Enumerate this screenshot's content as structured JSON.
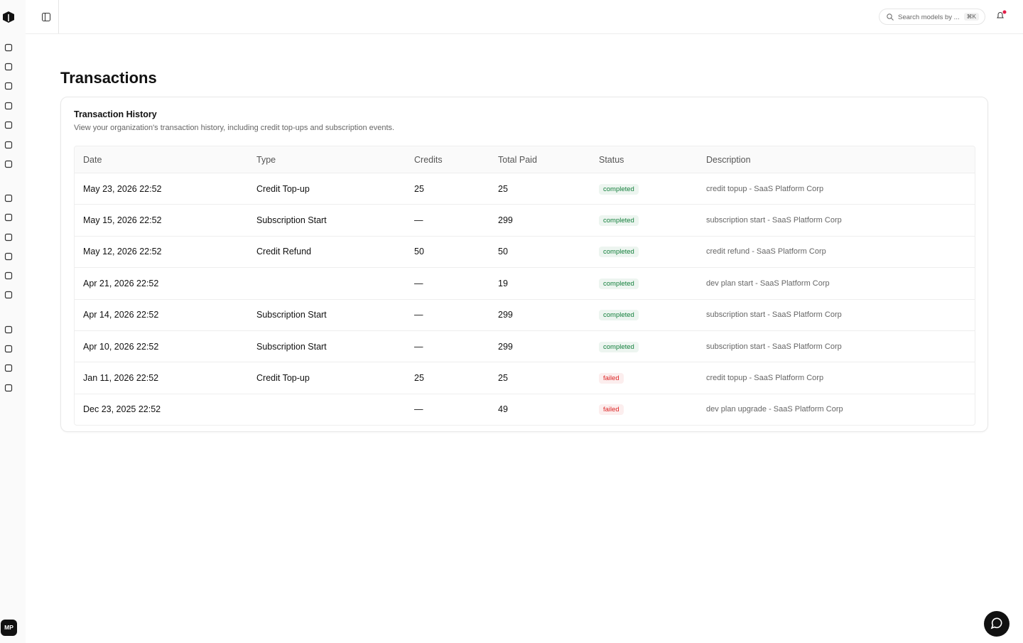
{
  "sidebar": {
    "avatar": "MP"
  },
  "header": {
    "search_placeholder": "Search models by ...",
    "shortcut": "⌘K"
  },
  "page": {
    "title": "Transactions"
  },
  "card": {
    "title": "Transaction History",
    "description": "View your organization's transaction history, including credit top-ups and subscription events."
  },
  "table": {
    "columns": [
      "Date",
      "Type",
      "Credits",
      "Total Paid",
      "Status",
      "Description"
    ],
    "status_colors": {
      "completed": "#15803d",
      "failed": "#dc2626"
    },
    "rows": [
      [
        "May 23, 2026 22:52",
        "Credit Top-up",
        25,
        25,
        "completed",
        "credit topup - SaaS Platform Corp"
      ],
      [
        "May 15, 2026 22:52",
        "Subscription Start",
        "—",
        299,
        "completed",
        "subscription start - SaaS Platform Corp"
      ],
      [
        "May 12, 2026 22:52",
        "Credit Refund",
        50,
        50,
        "completed",
        "credit refund - SaaS Platform Corp"
      ],
      [
        "Apr 21, 2026 22:52",
        null,
        "—",
        19,
        "completed",
        "dev plan start - SaaS Platform Corp"
      ],
      [
        "Apr 14, 2026 22:52",
        "Subscription Start",
        "—",
        299,
        "completed",
        "subscription start - SaaS Platform Corp"
      ],
      [
        "Apr 10, 2026 22:52",
        "Subscription Start",
        "—",
        299,
        "completed",
        "subscription start - SaaS Platform Corp"
      ],
      [
        "Jan 11, 2026 22:52",
        "Credit Top-up",
        25,
        25,
        "failed",
        "credit topup - SaaS Platform Corp"
      ],
      [
        "Dec 23, 2025 22:52",
        null,
        "—",
        49,
        "failed",
        "dev plan upgrade - SaaS Platform Corp"
      ]
    ]
  }
}
